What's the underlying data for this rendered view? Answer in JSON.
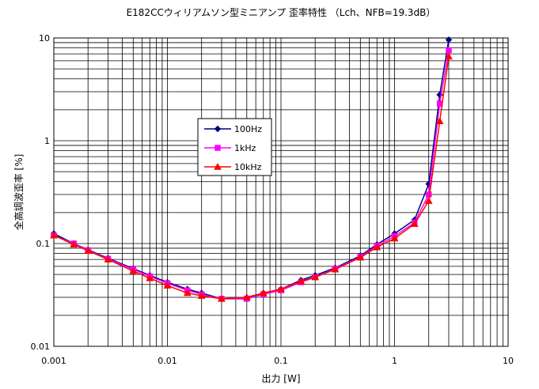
{
  "chart_data": {
    "type": "line",
    "title": "E182CCウィリアムソン型ミニアンプ 歪率特性 （Lch、NFB=19.3dB）",
    "xlabel": "出力 [W]",
    "ylabel": "全高調波歪率 [%]",
    "x_scale": "log",
    "y_scale": "log",
    "xlim": [
      0.001,
      10
    ],
    "ylim": [
      0.01,
      10
    ],
    "x_tick_labels": [
      "0.001",
      "0.01",
      "0.1",
      "1",
      "10"
    ],
    "y_tick_labels": [
      "0.01",
      "0.1",
      "1",
      "10"
    ],
    "grid": true,
    "legend_position": "center-left",
    "series": [
      {
        "name": "100Hz",
        "color": "#000080",
        "marker": "diamond",
        "points": [
          [
            0.001,
            0.125
          ],
          [
            0.0015,
            0.1
          ],
          [
            0.002,
            0.087
          ],
          [
            0.003,
            0.072
          ],
          [
            0.005,
            0.057
          ],
          [
            0.007,
            0.049
          ],
          [
            0.01,
            0.042
          ],
          [
            0.015,
            0.036
          ],
          [
            0.02,
            0.033
          ],
          [
            0.03,
            0.029
          ],
          [
            0.05,
            0.029
          ],
          [
            0.07,
            0.033
          ],
          [
            0.1,
            0.036
          ],
          [
            0.15,
            0.044
          ],
          [
            0.2,
            0.049
          ],
          [
            0.3,
            0.058
          ],
          [
            0.5,
            0.076
          ],
          [
            0.7,
            0.098
          ],
          [
            1.0,
            0.125
          ],
          [
            1.5,
            0.17
          ],
          [
            2.0,
            0.38
          ],
          [
            2.5,
            2.8
          ],
          [
            3.0,
            9.6
          ]
        ]
      },
      {
        "name": "1kHz",
        "color": "#FF00FF",
        "marker": "square",
        "points": [
          [
            0.001,
            0.12
          ],
          [
            0.0015,
            0.1
          ],
          [
            0.002,
            0.086
          ],
          [
            0.003,
            0.071
          ],
          [
            0.005,
            0.056
          ],
          [
            0.007,
            0.048
          ],
          [
            0.01,
            0.041
          ],
          [
            0.015,
            0.035
          ],
          [
            0.02,
            0.032
          ],
          [
            0.03,
            0.029
          ],
          [
            0.05,
            0.029
          ],
          [
            0.07,
            0.032
          ],
          [
            0.1,
            0.035
          ],
          [
            0.15,
            0.042
          ],
          [
            0.2,
            0.047
          ],
          [
            0.3,
            0.057
          ],
          [
            0.5,
            0.074
          ],
          [
            0.7,
            0.095
          ],
          [
            1.0,
            0.118
          ],
          [
            1.5,
            0.16
          ],
          [
            2.0,
            0.3
          ],
          [
            2.5,
            2.3
          ],
          [
            3.0,
            7.6
          ]
        ]
      },
      {
        "name": "10kHz",
        "color": "#FF0000",
        "marker": "triangle",
        "points": [
          [
            0.001,
            0.12
          ],
          [
            0.0015,
            0.098
          ],
          [
            0.002,
            0.085
          ],
          [
            0.003,
            0.07
          ],
          [
            0.005,
            0.054
          ],
          [
            0.007,
            0.046
          ],
          [
            0.01,
            0.039
          ],
          [
            0.015,
            0.033
          ],
          [
            0.02,
            0.031
          ],
          [
            0.03,
            0.029
          ],
          [
            0.05,
            0.03
          ],
          [
            0.07,
            0.033
          ],
          [
            0.1,
            0.036
          ],
          [
            0.15,
            0.043
          ],
          [
            0.2,
            0.047
          ],
          [
            0.3,
            0.056
          ],
          [
            0.5,
            0.073
          ],
          [
            0.7,
            0.092
          ],
          [
            1.0,
            0.112
          ],
          [
            1.5,
            0.155
          ],
          [
            2.0,
            0.26
          ],
          [
            2.5,
            1.55
          ],
          [
            3.0,
            6.6
          ]
        ]
      }
    ]
  }
}
